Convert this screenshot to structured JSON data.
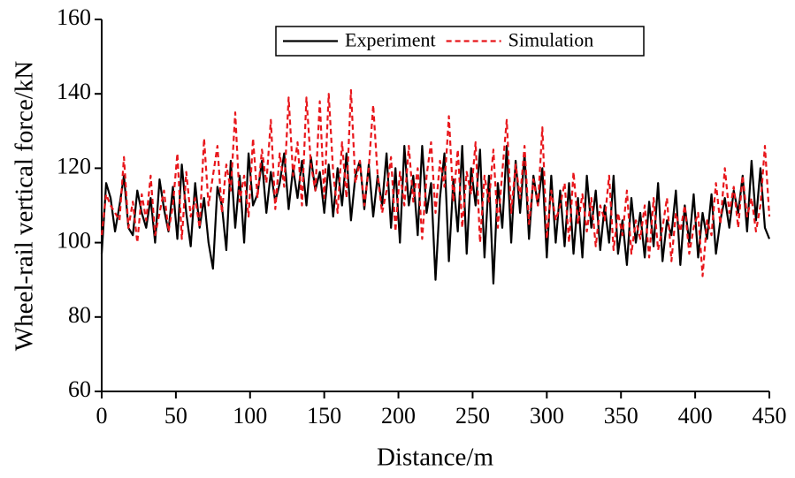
{
  "chart_data": {
    "type": "line",
    "xlabel": "Distance/m",
    "ylabel": "Wheel-rail vertical force/kN",
    "xlim": [
      0,
      450
    ],
    "ylim": [
      60,
      160
    ],
    "xticks": [
      0,
      50,
      100,
      150,
      200,
      250,
      300,
      350,
      400,
      450
    ],
    "yticks": [
      60,
      80,
      100,
      120,
      140,
      160
    ],
    "legend": "top",
    "x": [
      0,
      3,
      6,
      9,
      12,
      15,
      18,
      21,
      24,
      27,
      30,
      33,
      36,
      39,
      42,
      45,
      48,
      51,
      54,
      57,
      60,
      63,
      66,
      69,
      72,
      75,
      78,
      81,
      84,
      87,
      90,
      93,
      96,
      99,
      102,
      105,
      108,
      111,
      114,
      117,
      120,
      123,
      126,
      129,
      132,
      135,
      138,
      141,
      144,
      147,
      150,
      153,
      156,
      159,
      162,
      165,
      168,
      171,
      174,
      177,
      180,
      183,
      186,
      189,
      192,
      195,
      198,
      201,
      204,
      207,
      210,
      213,
      216,
      219,
      222,
      225,
      228,
      231,
      234,
      237,
      240,
      243,
      246,
      249,
      252,
      255,
      258,
      261,
      264,
      267,
      270,
      273,
      276,
      279,
      282,
      285,
      288,
      291,
      294,
      297,
      300,
      303,
      306,
      309,
      312,
      315,
      318,
      321,
      324,
      327,
      330,
      333,
      336,
      339,
      342,
      345,
      348,
      351,
      354,
      357,
      360,
      363,
      366,
      369,
      372,
      375,
      378,
      381,
      384,
      387,
      390,
      393,
      396,
      399,
      402,
      405,
      408,
      411,
      414,
      417,
      420,
      423,
      426,
      429,
      432,
      435,
      438,
      441,
      444,
      447,
      450
    ],
    "series": [
      {
        "name": "Experiment",
        "color": "#000000",
        "linestyle": "solid",
        "values": [
          97,
          116,
          112,
          103,
          110,
          118,
          104,
          102,
          114,
          108,
          104,
          112,
          100,
          117,
          109,
          103,
          115,
          101,
          121,
          108,
          99,
          116,
          104,
          112,
          100,
          93,
          115,
          110,
          98,
          122,
          104,
          118,
          100,
          124,
          110,
          113,
          122,
          108,
          119,
          111,
          116,
          124,
          109,
          120,
          112,
          122,
          110,
          123,
          114,
          119,
          108,
          121,
          107,
          120,
          110,
          124,
          106,
          118,
          122,
          109,
          121,
          107,
          118,
          110,
          124,
          104,
          120,
          100,
          126,
          110,
          118,
          102,
          126,
          108,
          116,
          90,
          112,
          124,
          95,
          117,
          103,
          126,
          97,
          120,
          110,
          125,
          96,
          118,
          89,
          116,
          104,
          126,
          100,
          122,
          108,
          124,
          101,
          118,
          110,
          120,
          96,
          118,
          100,
          114,
          99,
          116,
          97,
          112,
          96,
          118,
          104,
          114,
          98,
          110,
          100,
          118,
          97,
          106,
          94,
          112,
          100,
          108,
          96,
          111,
          99,
          116,
          95,
          106,
          102,
          114,
          94,
          110,
          100,
          113,
          96,
          108,
          101,
          113,
          97,
          106,
          112,
          104,
          114,
          108,
          118,
          103,
          122,
          106,
          120,
          104,
          101
        ]
      },
      {
        "name": "Simulation",
        "color": "#e8161b",
        "linestyle": "dashed",
        "values": [
          102,
          113,
          110,
          108,
          106,
          123,
          104,
          111,
          100,
          113,
          106,
          118,
          102,
          108,
          114,
          103,
          110,
          124,
          101,
          119,
          107,
          112,
          104,
          128,
          110,
          118,
          126,
          108,
          121,
          114,
          135,
          111,
          118,
          107,
          128,
          112,
          125,
          116,
          133,
          109,
          124,
          115,
          139,
          118,
          127,
          110,
          139,
          121,
          114,
          138,
          112,
          140,
          119,
          108,
          127,
          112,
          141,
          116,
          122,
          110,
          120,
          137,
          118,
          108,
          114,
          123,
          103,
          119,
          110,
          126,
          111,
          120,
          101,
          118,
          127,
          108,
          122,
          115,
          134,
          111,
          125,
          104,
          119,
          113,
          127,
          100,
          118,
          111,
          125,
          104,
          119,
          133,
          108,
          121,
          112,
          126,
          105,
          117,
          110,
          131,
          101,
          114,
          106,
          110,
          116,
          100,
          119,
          105,
          113,
          103,
          112,
          99,
          110,
          106,
          118,
          98,
          108,
          102,
          114,
          97,
          106,
          101,
          110,
          96,
          112,
          98,
          104,
          112,
          95,
          108,
          103,
          110,
          97,
          104,
          108,
          91,
          106,
          102,
          116,
          105,
          120,
          108,
          115,
          104,
          118,
          107,
          112,
          103,
          110,
          126,
          107
        ]
      }
    ]
  }
}
